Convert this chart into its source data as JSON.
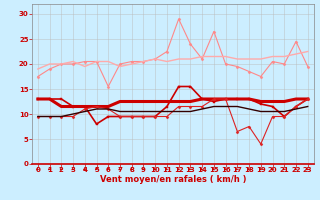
{
  "background_color": "#cceeff",
  "grid_color": "#bbbbbb",
  "xlabel": "Vent moyen/en rafales ( km/h )",
  "xlabel_color": "#cc0000",
  "xlabel_fontsize": 6,
  "tick_color": "#cc0000",
  "tick_fontsize": 5,
  "ylim": [
    0,
    32
  ],
  "xlim": [
    -0.5,
    23.5
  ],
  "yticks": [
    0,
    5,
    10,
    15,
    20,
    25,
    30
  ],
  "xticks": [
    0,
    1,
    2,
    3,
    4,
    5,
    6,
    7,
    8,
    9,
    10,
    11,
    12,
    13,
    14,
    15,
    16,
    17,
    18,
    19,
    20,
    21,
    22,
    23
  ],
  "series": [
    {
      "y": [
        17.5,
        19.0,
        20.0,
        20.0,
        20.5,
        20.5,
        15.5,
        20.0,
        20.5,
        20.5,
        21.0,
        22.5,
        29.0,
        24.0,
        21.0,
        26.5,
        20.0,
        19.5,
        18.5,
        17.5,
        20.5,
        20.0,
        24.5,
        19.5
      ],
      "color": "#ff8888",
      "lw": 0.8,
      "marker": "D",
      "markersize": 1.5,
      "zorder": 2
    },
    {
      "y": [
        19.0,
        20.0,
        20.0,
        20.5,
        19.5,
        20.5,
        20.5,
        19.5,
        20.0,
        20.5,
        21.0,
        20.5,
        21.0,
        21.0,
        21.5,
        21.5,
        21.5,
        21.0,
        21.0,
        21.0,
        21.5,
        21.5,
        22.0,
        22.5
      ],
      "color": "#ffaaaa",
      "lw": 1.0,
      "marker": null,
      "markersize": 0,
      "zorder": 2
    },
    {
      "y": [
        13.0,
        13.0,
        13.0,
        11.5,
        11.5,
        8.0,
        9.5,
        9.5,
        9.5,
        9.5,
        9.5,
        11.5,
        15.5,
        15.5,
        13.0,
        12.5,
        13.0,
        13.0,
        13.0,
        12.0,
        11.5,
        9.5,
        11.5,
        13.0
      ],
      "color": "#cc0000",
      "lw": 1.2,
      "marker": "s",
      "markersize": 1.5,
      "zorder": 4
    },
    {
      "y": [
        13.0,
        13.0,
        11.5,
        11.5,
        11.5,
        11.5,
        11.5,
        12.5,
        12.5,
        12.5,
        12.5,
        12.5,
        12.5,
        12.5,
        13.0,
        13.0,
        13.0,
        13.0,
        13.0,
        12.5,
        12.5,
        12.5,
        13.0,
        13.0
      ],
      "color": "#cc0000",
      "lw": 2.2,
      "marker": null,
      "markersize": 0,
      "zorder": 3
    },
    {
      "y": [
        9.5,
        9.5,
        9.5,
        9.5,
        11.0,
        11.5,
        11.0,
        9.5,
        9.5,
        9.5,
        9.5,
        9.5,
        11.5,
        11.5,
        11.5,
        13.0,
        13.0,
        6.5,
        7.5,
        4.0,
        9.5,
        9.5,
        11.5,
        13.0
      ],
      "color": "#dd2222",
      "lw": 0.8,
      "marker": "D",
      "markersize": 1.5,
      "zorder": 4
    },
    {
      "y": [
        9.5,
        9.5,
        9.5,
        10.0,
        10.5,
        11.0,
        11.0,
        10.5,
        10.5,
        10.5,
        10.5,
        10.5,
        10.5,
        10.5,
        11.0,
        11.5,
        11.5,
        11.5,
        11.0,
        10.5,
        10.5,
        10.5,
        11.0,
        11.5
      ],
      "color": "#330000",
      "lw": 1.0,
      "marker": null,
      "markersize": 0,
      "zorder": 5
    }
  ]
}
